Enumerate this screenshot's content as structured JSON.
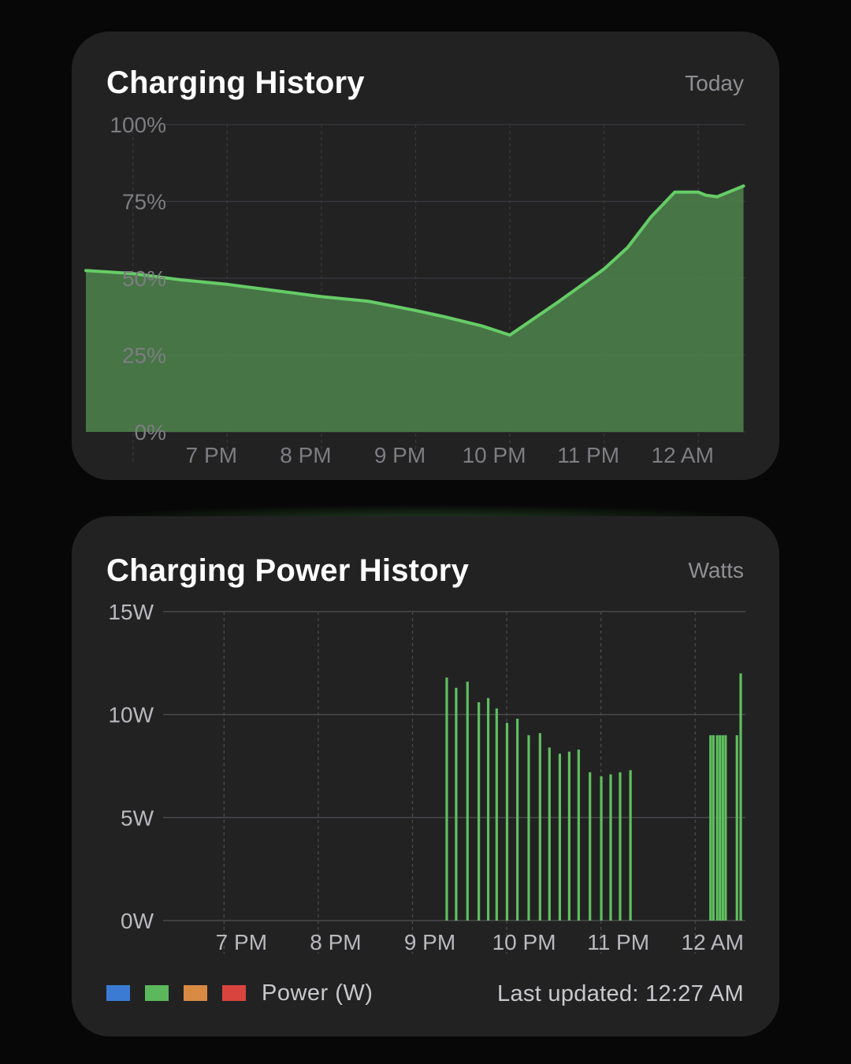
{
  "battery_card": {
    "title": "Charging History",
    "period": "Today",
    "chart_data": {
      "type": "area",
      "x_tick_labels": [
        "7 PM",
        "8 PM",
        "9 PM",
        "10 PM",
        "11 PM",
        "12 AM"
      ],
      "y_tick_labels": [
        "100%",
        "75%",
        "50%",
        "25%",
        "0%"
      ],
      "ylim": [
        0,
        100
      ],
      "xlim_hours": [
        17.5,
        24.5
      ],
      "x_hours": [
        17.5,
        18.0,
        18.5,
        19.0,
        19.5,
        20.0,
        20.5,
        21.0,
        21.3,
        21.7,
        22.0,
        22.5,
        23.0,
        23.25,
        23.5,
        23.75,
        24.0,
        24.08,
        24.2,
        24.48
      ],
      "values": [
        52.5,
        51.5,
        49.5,
        48.0,
        46.0,
        44.0,
        42.5,
        39.5,
        37.5,
        34.5,
        31.5,
        42.0,
        53.0,
        60.0,
        70.0,
        78.0,
        78.0,
        77.0,
        76.5,
        80.0
      ],
      "grid": true,
      "line_color": "#66cc66",
      "fill_color": "#4b7d4a"
    }
  },
  "power_card": {
    "title": "Charging Power History",
    "unit": "Watts",
    "chart_data": {
      "type": "bar",
      "x_tick_labels": [
        "7 PM",
        "8 PM",
        "9 PM",
        "10 PM",
        "11 PM",
        "12 AM"
      ],
      "y_tick_labels": [
        "15W",
        "10W",
        "5W",
        "0W"
      ],
      "ylim": [
        0,
        15
      ],
      "xlim_hours": [
        17.5,
        24.5
      ],
      "x_hours": [
        21.33,
        21.43,
        21.55,
        21.67,
        21.77,
        21.86,
        21.97,
        22.08,
        22.2,
        22.32,
        22.42,
        22.53,
        22.63,
        22.73,
        22.85,
        22.97,
        23.07,
        23.17,
        23.28,
        24.13,
        24.16,
        24.2,
        24.23,
        24.26,
        24.29,
        24.41,
        24.45
      ],
      "values": [
        11.8,
        11.3,
        11.6,
        10.6,
        10.8,
        10.3,
        9.6,
        9.8,
        9.0,
        9.1,
        8.4,
        8.1,
        8.2,
        8.3,
        7.2,
        7.0,
        7.1,
        7.2,
        7.3,
        9.0,
        9.0,
        9.0,
        9.0,
        9.0,
        9.0,
        9.0,
        12.0
      ],
      "grid": true,
      "bar_color": "#5fbf5f"
    },
    "legend": {
      "swatch_colors": [
        "#3b7bd4",
        "#5cb85c",
        "#d88a43",
        "#d9443f"
      ],
      "label": "Power (W)",
      "placement": "bottom-left"
    },
    "last_updated": "Last updated: 12:27 AM"
  }
}
